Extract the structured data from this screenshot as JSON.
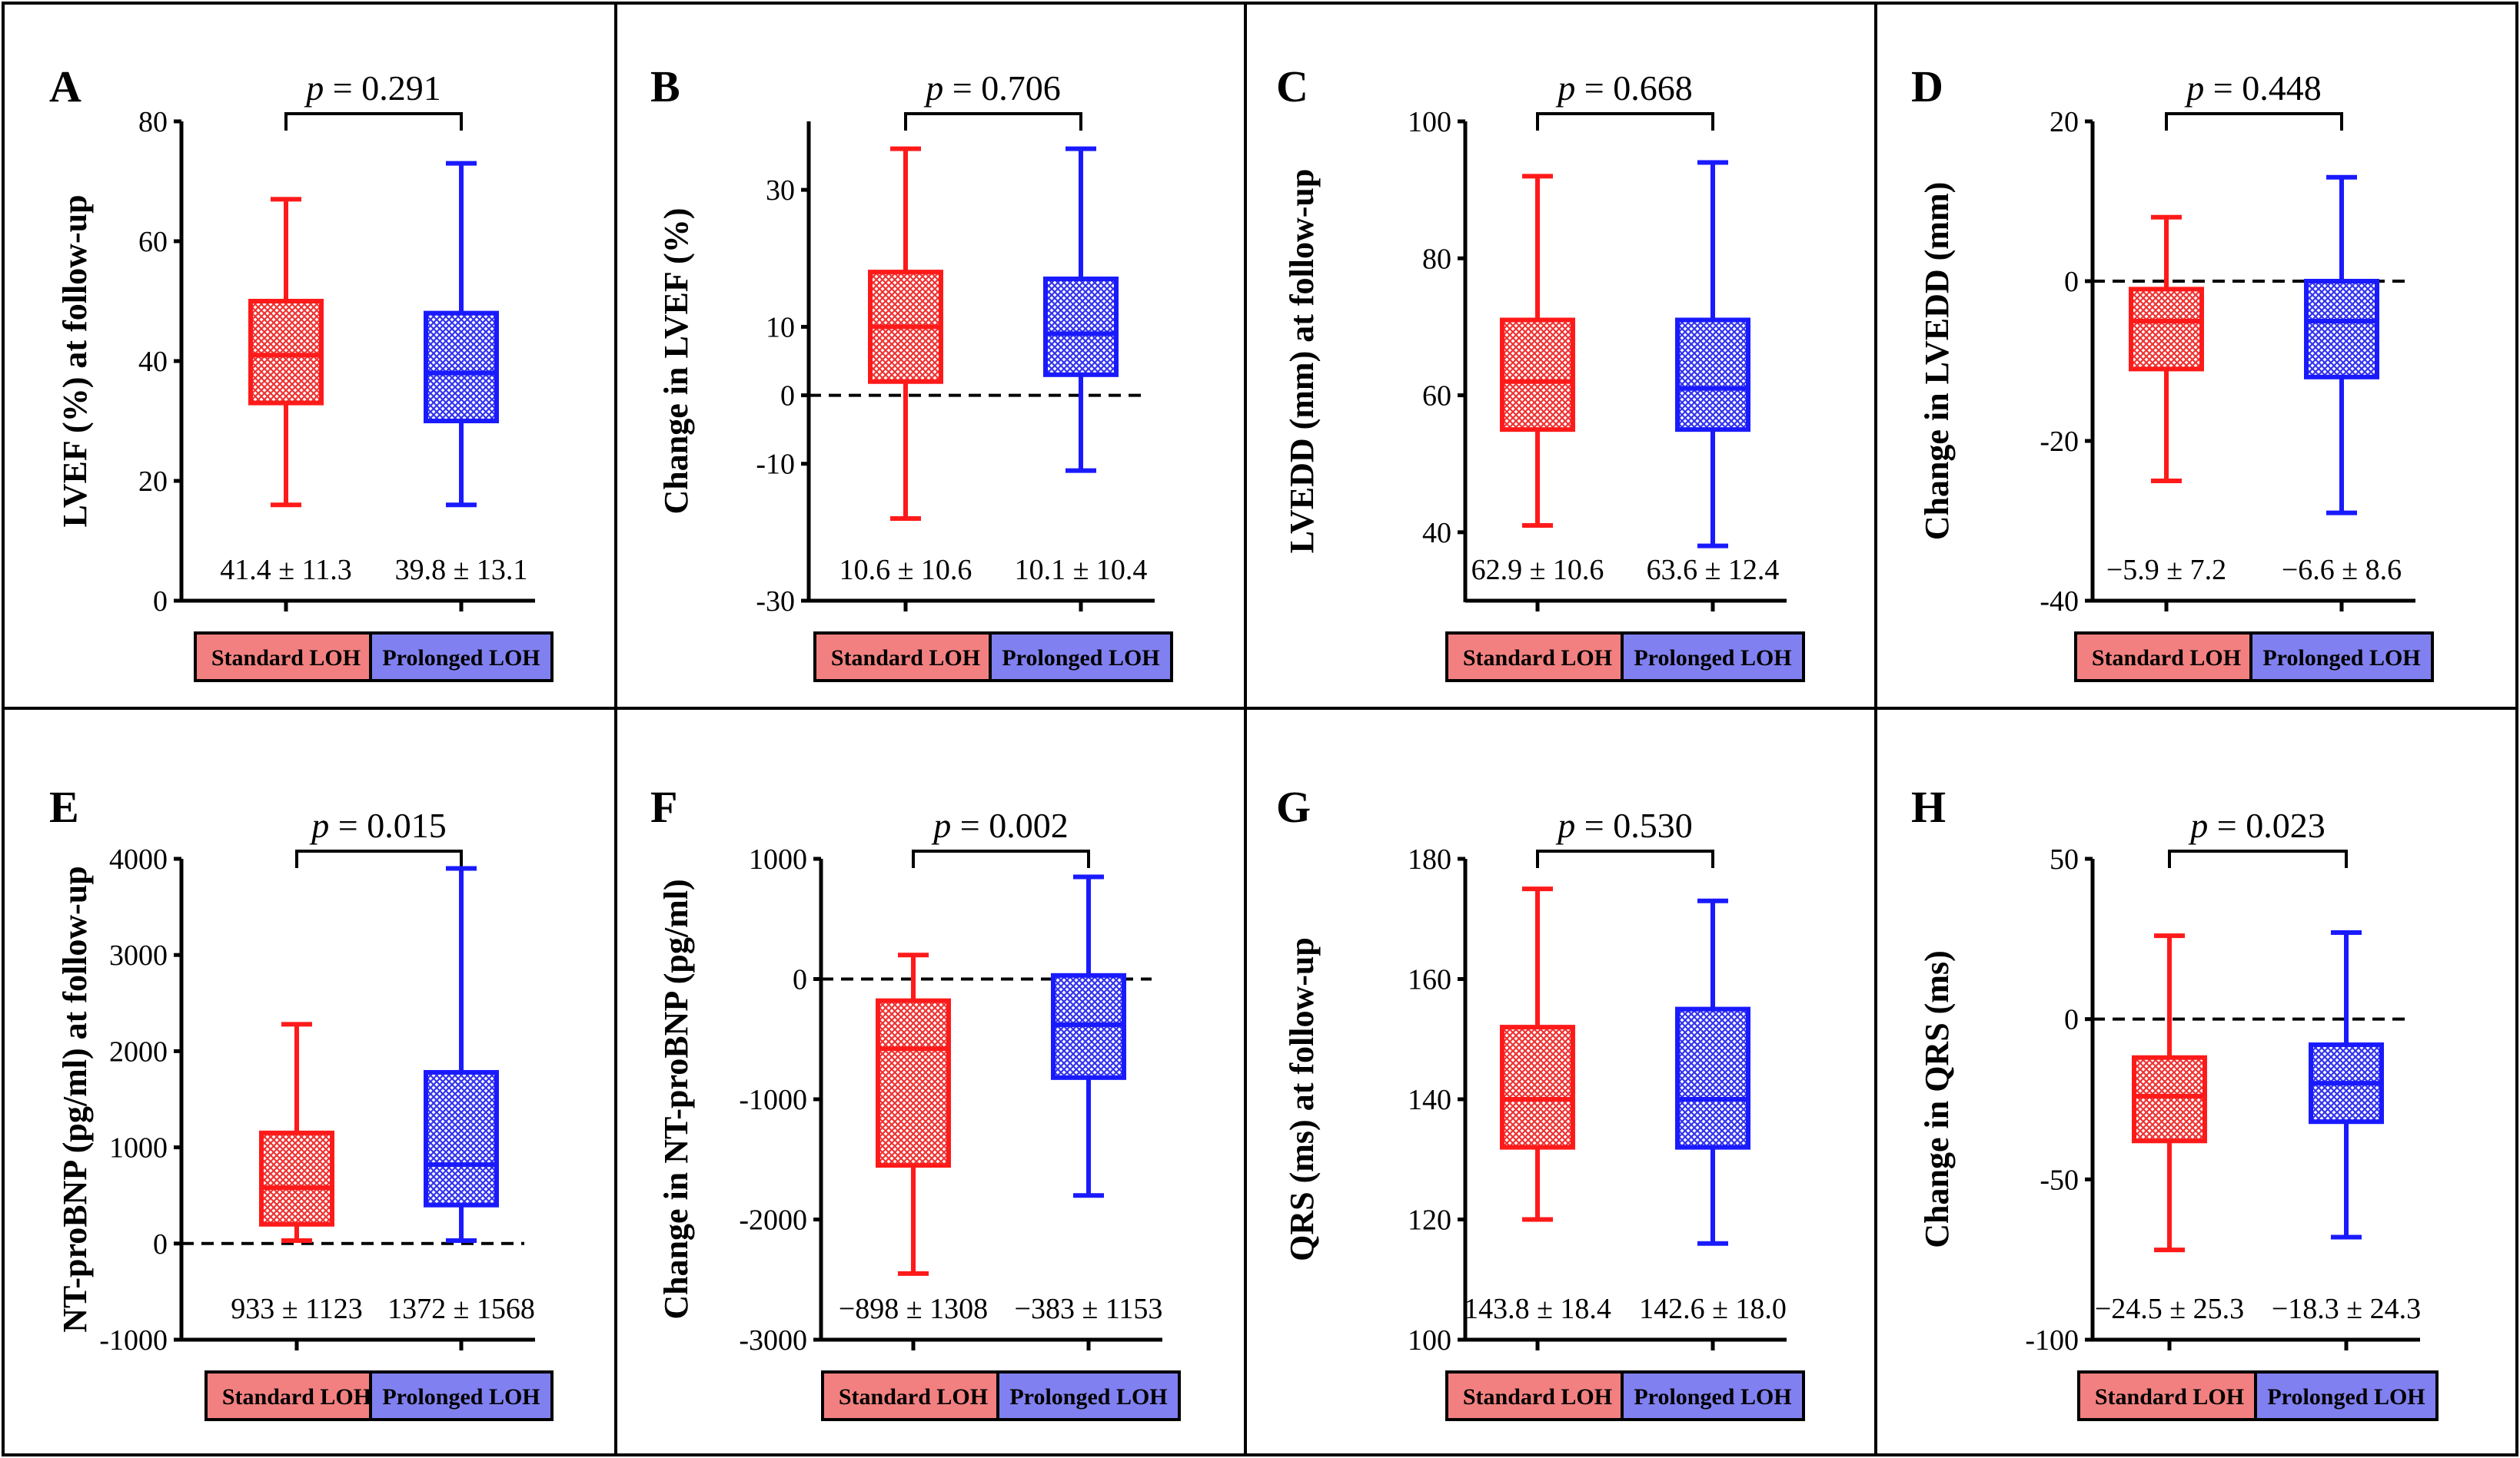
{
  "colors": {
    "standard": "#ff1a1a",
    "prolonged": "#1a1aff",
    "standard_fill": "#f28080",
    "prolonged_fill": "#8080f0"
  },
  "groups": [
    "Standard LOH",
    "Prolonged LOH"
  ],
  "chart_data": [
    {
      "type": "box",
      "letter": "A",
      "ylabel": "LVEF (%) at follow-up",
      "p_label": "p",
      "p_value": "= 0.291",
      "ylim": [
        0,
        80
      ],
      "ticks": [
        0,
        20,
        40,
        60,
        80
      ],
      "tick_labels": [
        "0",
        "20",
        "40",
        "60",
        "80"
      ],
      "zero_line": false,
      "boxes": [
        {
          "group": "Standard LOH",
          "min": 16,
          "q1": 33,
          "median": 41,
          "q3": 50,
          "max": 67,
          "stat": "41.4 ± 11.3"
        },
        {
          "group": "Prolonged LOH",
          "min": 16,
          "q1": 30,
          "median": 38,
          "q3": 48,
          "max": 73,
          "stat": "39.8 ± 13.1"
        }
      ]
    },
    {
      "type": "box",
      "letter": "B",
      "ylabel": "Change in LVEF (%)",
      "p_label": "p",
      "p_value": "= 0.706",
      "ylim": [
        -30,
        40
      ],
      "ticks": [
        -30,
        -10,
        0,
        10,
        30
      ],
      "tick_labels": [
        "-30",
        "-10",
        "0",
        "10",
        "30"
      ],
      "zero_line": true,
      "boxes": [
        {
          "group": "Standard LOH",
          "min": -18,
          "q1": 2,
          "median": 10,
          "q3": 18,
          "max": 36,
          "stat": "10.6 ± 10.6"
        },
        {
          "group": "Prolonged LOH",
          "min": -11,
          "q1": 3,
          "median": 9,
          "q3": 17,
          "max": 36,
          "stat": "10.1 ± 10.4"
        }
      ]
    },
    {
      "type": "box",
      "letter": "C",
      "ylabel": "LVEDD (mm) at follow-up",
      "p_label": "p",
      "p_value": "= 0.668",
      "ylim": [
        30,
        100
      ],
      "ticks": [
        40,
        60,
        80,
        100
      ],
      "tick_labels": [
        "40",
        "60",
        "80",
        "100"
      ],
      "zero_line": false,
      "boxes": [
        {
          "group": "Standard LOH",
          "min": 41,
          "q1": 55,
          "median": 62,
          "q3": 71,
          "max": 92,
          "stat": "62.9 ± 10.6"
        },
        {
          "group": "Prolonged LOH",
          "min": 38,
          "q1": 55,
          "median": 61,
          "q3": 71,
          "max": 94,
          "stat": "63.6 ± 12.4"
        }
      ]
    },
    {
      "type": "box",
      "letter": "D",
      "ylabel": "Change in LVEDD (mm)",
      "p_label": "p",
      "p_value": "= 0.448",
      "ylim": [
        -40,
        20
      ],
      "ticks": [
        -40,
        -20,
        0,
        20
      ],
      "tick_labels": [
        "-40",
        "-20",
        "0",
        "20"
      ],
      "zero_line": true,
      "boxes": [
        {
          "group": "Standard LOH",
          "min": -25,
          "q1": -11,
          "median": -5,
          "q3": -1,
          "max": 8,
          "stat": "−5.9 ± 7.2"
        },
        {
          "group": "Prolonged LOH",
          "min": -29,
          "q1": -12,
          "median": -5,
          "q3": 0,
          "max": 13,
          "stat": "−6.6 ± 8.6"
        }
      ]
    },
    {
      "type": "box",
      "letter": "E",
      "ylabel": "NT-proBNP (pg/ml) at follow-up",
      "p_label": "p",
      "p_value": "= 0.015",
      "ylim": [
        -1000,
        4000
      ],
      "ticks": [
        -1000,
        0,
        1000,
        2000,
        3000,
        4000
      ],
      "tick_labels": [
        "-1000",
        "0",
        "1000",
        "2000",
        "3000",
        "4000"
      ],
      "zero_line": true,
      "boxes": [
        {
          "group": "Standard LOH",
          "min": 30,
          "q1": 200,
          "median": 580,
          "q3": 1150,
          "max": 2280,
          "stat": "933 ± 1123"
        },
        {
          "group": "Prolonged LOH",
          "min": 30,
          "q1": 400,
          "median": 820,
          "q3": 1780,
          "max": 3900,
          "stat": "1372 ± 1568"
        }
      ]
    },
    {
      "type": "box",
      "letter": "F",
      "ylabel": "Change in NT-proBNP (pg/ml)",
      "p_label": "p",
      "p_value": "= 0.002",
      "ylim": [
        -3000,
        1000
      ],
      "ticks": [
        -3000,
        -2000,
        -1000,
        0,
        1000
      ],
      "tick_labels": [
        "-3000",
        "-2000",
        "-1000",
        "0",
        "1000"
      ],
      "zero_line": true,
      "boxes": [
        {
          "group": "Standard LOH",
          "min": -2450,
          "q1": -1550,
          "median": -580,
          "q3": -180,
          "max": 200,
          "stat": "−898 ± 1308"
        },
        {
          "group": "Prolonged LOH",
          "min": -1800,
          "q1": -820,
          "median": -380,
          "q3": 30,
          "max": 850,
          "stat": "−383 ± 1153"
        }
      ]
    },
    {
      "type": "box",
      "letter": "G",
      "ylabel": "QRS (ms) at follow-up",
      "p_label": "p",
      "p_value": "= 0.530",
      "ylim": [
        100,
        180
      ],
      "ticks": [
        100,
        120,
        140,
        160,
        180
      ],
      "tick_labels": [
        "100",
        "120",
        "140",
        "160",
        "180"
      ],
      "zero_line": false,
      "boxes": [
        {
          "group": "Standard LOH",
          "min": 120,
          "q1": 132,
          "median": 140,
          "q3": 152,
          "max": 175,
          "stat": "143.8 ± 18.4"
        },
        {
          "group": "Prolonged LOH",
          "min": 116,
          "q1": 132,
          "median": 140,
          "q3": 155,
          "max": 173,
          "stat": "142.6 ± 18.0"
        }
      ]
    },
    {
      "type": "box",
      "letter": "H",
      "ylabel": "Change in QRS (ms)",
      "p_label": "p",
      "p_value": "= 0.023",
      "ylim": [
        -100,
        50
      ],
      "ticks": [
        -100,
        -50,
        0,
        50
      ],
      "tick_labels": [
        "-100",
        "-50",
        "0",
        "50"
      ],
      "zero_line": true,
      "boxes": [
        {
          "group": "Standard LOH",
          "min": -72,
          "q1": -38,
          "median": -24,
          "q3": -12,
          "max": 26,
          "stat": "−24.5 ± 25.3"
        },
        {
          "group": "Prolonged LOH",
          "min": -68,
          "q1": -32,
          "median": -20,
          "q3": -8,
          "max": 27,
          "stat": "−18.3 ± 24.3"
        }
      ]
    }
  ]
}
